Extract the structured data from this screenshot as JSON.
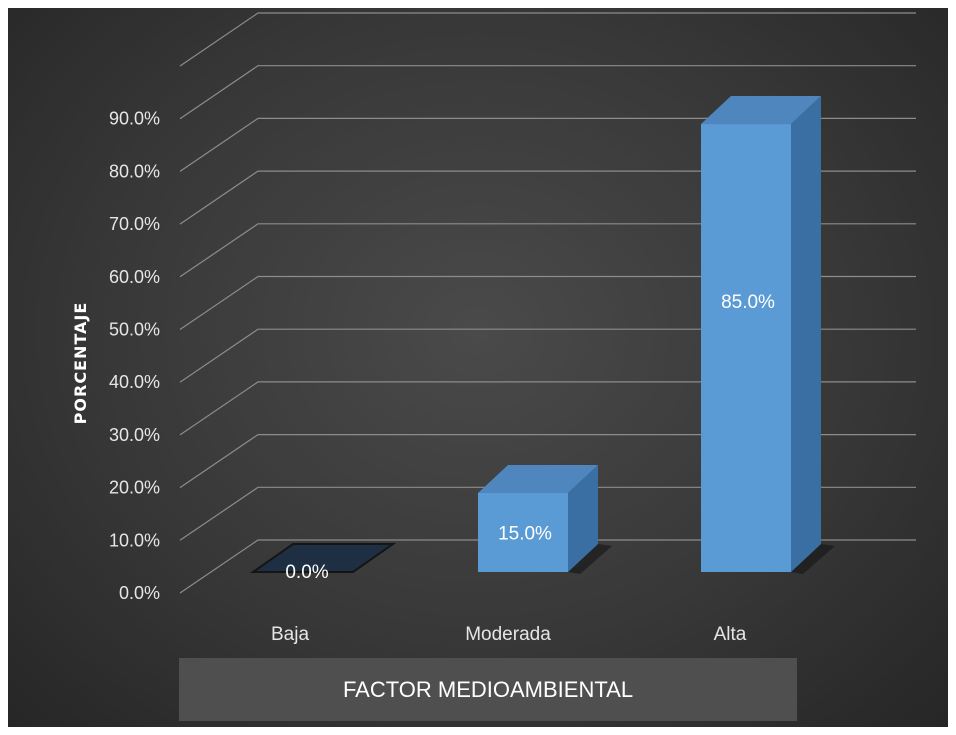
{
  "chart_data": {
    "type": "bar",
    "categories": [
      "Baja",
      "Moderada",
      "Alta"
    ],
    "values": [
      0.0,
      15.0,
      85.0
    ],
    "value_labels": [
      "0.0%",
      "15.0%",
      "85.0%"
    ],
    "xlabel": "FACTOR MEDIOAMBIENTAL",
    "ylabel": "PORCENTAJE",
    "ylim": [
      0,
      90
    ],
    "yticks": [
      "0.0%",
      "10.0%",
      "20.0%",
      "30.0%",
      "40.0%",
      "50.0%",
      "60.0%",
      "70.0%",
      "80.0%",
      "90.0%"
    ],
    "grid": true,
    "style": "3d-column",
    "colors": {
      "bar": "#5b9bd5",
      "background": "#3a3a3a",
      "grid": "#8c8c8c",
      "text": "#e6e6e6"
    }
  }
}
